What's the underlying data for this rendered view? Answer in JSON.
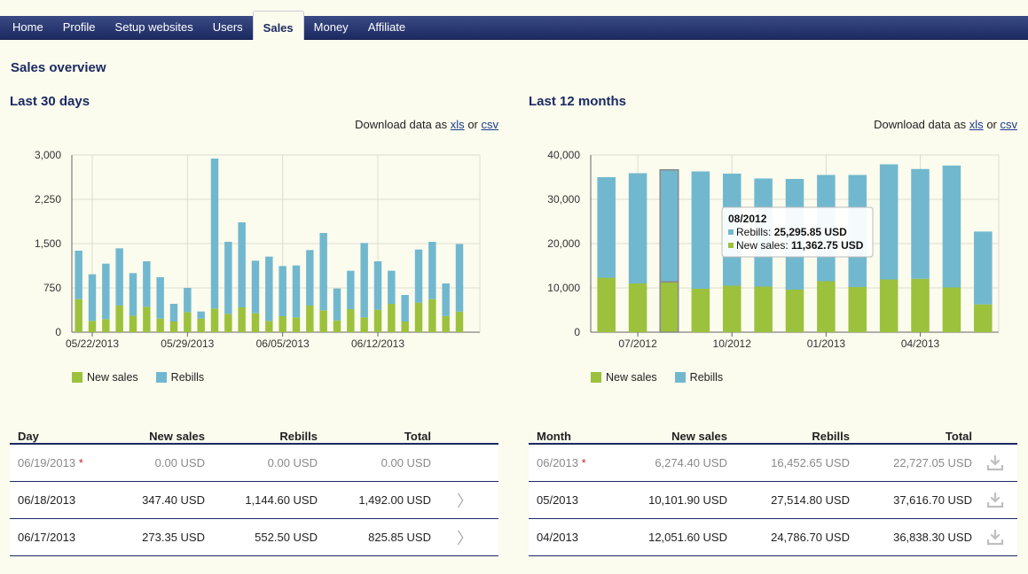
{
  "nav": {
    "items": [
      "Home",
      "Profile",
      "Setup websites",
      "Users",
      "Sales",
      "Money",
      "Affiliate"
    ],
    "active": "Sales"
  },
  "page": {
    "title": "Sales overview"
  },
  "colors": {
    "new_sales": "#9cc13d",
    "rebills": "#71b8cf",
    "nav": "#1c2a62"
  },
  "panels": {
    "left": {
      "title": "Last 30 days",
      "download": {
        "prefix": "Download data as",
        "xls": "xls",
        "or": "or",
        "csv": "csv"
      }
    },
    "right": {
      "title": "Last 12 months",
      "download": {
        "prefix": "Download data as",
        "xls": "xls",
        "or": "or",
        "csv": "csv"
      }
    }
  },
  "chart_data": [
    {
      "type": "bar",
      "stacked": true,
      "ylim": [
        0,
        3000
      ],
      "yticks": [
        "0",
        "750",
        "1,500",
        "2,250",
        "3,000"
      ],
      "ytick_values": [
        0,
        750,
        1500,
        2250,
        3000
      ],
      "xtick_labels": [
        "05/22/2013",
        "05/29/2013",
        "06/05/2013",
        "06/12/2013"
      ],
      "xtick_indices": [
        1,
        8,
        15,
        22
      ],
      "grid": true,
      "legend": "bottom-left",
      "series": [
        {
          "name": "New sales",
          "color": "#9cc13d",
          "values": [
            560,
            190,
            220,
            450,
            280,
            430,
            230,
            180,
            340,
            230,
            400,
            310,
            420,
            320,
            190,
            270,
            250,
            450,
            370,
            200,
            390,
            250,
            380,
            480,
            180,
            500,
            560,
            273.35,
            347.4,
            0
          ]
        },
        {
          "name": "Rebills",
          "color": "#71b8cf",
          "values": [
            820,
            790,
            940,
            970,
            720,
            770,
            700,
            300,
            410,
            120,
            2540,
            1220,
            1440,
            890,
            1090,
            850,
            880,
            940,
            1310,
            540,
            650,
            1260,
            820,
            560,
            450,
            900,
            970,
            552.5,
            1144.6,
            0
          ]
        }
      ]
    },
    {
      "type": "bar",
      "stacked": true,
      "ylim": [
        0,
        40000
      ],
      "yticks": [
        "0",
        "10,000",
        "20,000",
        "30,000",
        "40,000"
      ],
      "ytick_values": [
        0,
        10000,
        20000,
        30000,
        40000
      ],
      "xtick_labels": [
        "07/2012",
        "10/2012",
        "01/2013",
        "04/2013"
      ],
      "xtick_indices": [
        1,
        4,
        7,
        10
      ],
      "grid": true,
      "legend": "bottom-left",
      "highlight_index": 2,
      "series": [
        {
          "name": "New sales",
          "color": "#9cc13d",
          "values": [
            12300,
            11000,
            11362.75,
            9800,
            10500,
            10300,
            9600,
            11500,
            10200,
            11900,
            12051.6,
            10101.9,
            6274.4
          ]
        },
        {
          "name": "Rebills",
          "color": "#71b8cf",
          "values": [
            22700,
            24900,
            25295.85,
            26500,
            25300,
            24400,
            25000,
            24000,
            25300,
            26000,
            24786.7,
            27514.8,
            16452.65
          ]
        }
      ],
      "tooltip": {
        "title": "08/2012",
        "rebills_label": "Rebills:",
        "rebills_value": "25,295.85 USD",
        "new_label": "New sales:",
        "new_value": "11,362.75 USD"
      }
    }
  ],
  "legend": {
    "new_sales": "New sales",
    "rebills": "Rebills"
  },
  "tables": {
    "daily": {
      "headers": [
        "Day",
        "New sales",
        "Rebills",
        "Total"
      ],
      "rows": [
        {
          "date": "06/19/2013",
          "marker": "*",
          "new": "0.00 USD",
          "rebills": "0.00 USD",
          "total": "0.00 USD",
          "muted": true,
          "action": ""
        },
        {
          "date": "06/18/2013",
          "marker": "",
          "new": "347.40 USD",
          "rebills": "1,144.60 USD",
          "total": "1,492.00 USD",
          "muted": false,
          "action": "〉"
        },
        {
          "date": "06/17/2013",
          "marker": "",
          "new": "273.35 USD",
          "rebills": "552.50 USD",
          "total": "825.85 USD",
          "muted": false,
          "action": "〉"
        }
      ]
    },
    "monthly": {
      "headers": [
        "Month",
        "New sales",
        "Rebills",
        "Total"
      ],
      "rows": [
        {
          "date": "06/2013",
          "marker": "*",
          "new": "6,274.40 USD",
          "rebills": "16,452.65 USD",
          "total": "22,727.05 USD",
          "muted": true,
          "action": "download-icon"
        },
        {
          "date": "05/2013",
          "marker": "",
          "new": "10,101.90 USD",
          "rebills": "27,514.80 USD",
          "total": "37,616.70 USD",
          "muted": false,
          "action": "download-icon"
        },
        {
          "date": "04/2013",
          "marker": "",
          "new": "12,051.60 USD",
          "rebills": "24,786.70 USD",
          "total": "36,838.30 USD",
          "muted": false,
          "action": "download-icon"
        }
      ]
    }
  }
}
